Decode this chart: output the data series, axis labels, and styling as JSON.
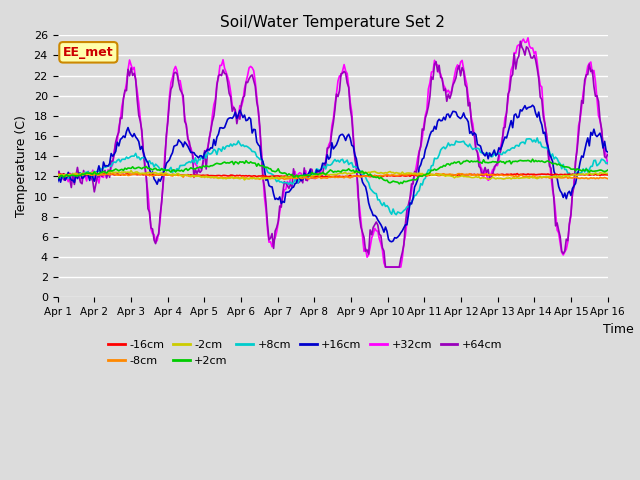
{
  "title": "Soil/Water Temperature Set 2",
  "xlabel": "Time",
  "ylabel": "Temperature (C)",
  "xlim": [
    0,
    15
  ],
  "ylim": [
    0,
    26
  ],
  "yticks": [
    0,
    2,
    4,
    6,
    8,
    10,
    12,
    14,
    16,
    18,
    20,
    22,
    24,
    26
  ],
  "xtick_labels": [
    "Apr 1",
    "Apr 2",
    "Apr 3",
    "Apr 4",
    "Apr 5",
    "Apr 6",
    "Apr 7",
    "Apr 8",
    "Apr 9",
    "Apr 10",
    "Apr 11",
    "Apr 12",
    "Apr 13",
    "Apr 14",
    "Apr 15",
    "Apr 16"
  ],
  "bg_color": "#dcdcdc",
  "series_colors": {
    "-16cm": "#ff0000",
    "-8cm": "#ff8800",
    "-2cm": "#cccc00",
    "+2cm": "#00cc00",
    "+8cm": "#00cccc",
    "+16cm": "#0000cc",
    "+32cm": "#ff00ff",
    "+64cm": "#9900bb"
  },
  "annotation_text": "EE_met",
  "annotation_color": "#cc0000",
  "annotation_bg": "#ffffaa",
  "annotation_border": "#cc8800",
  "lw": 1.2
}
